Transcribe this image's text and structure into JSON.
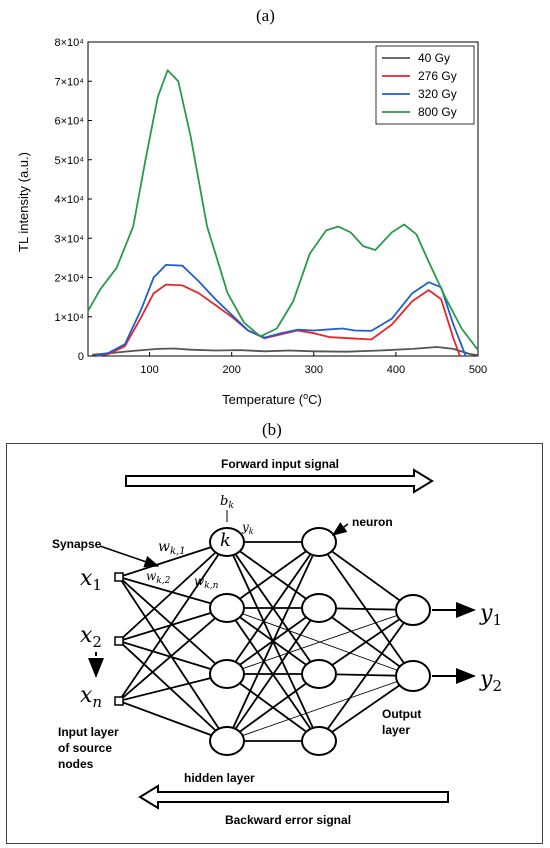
{
  "panel_a_label": "(a)",
  "panel_b_label": "(b)",
  "chart_data": {
    "type": "line",
    "title": "",
    "xlabel": "Temperature (oC)",
    "ylabel": "TL intensity (a.u.)",
    "xlim": [
      25,
      500
    ],
    "ylim": [
      0,
      80000
    ],
    "x_ticks": [
      100,
      200,
      300,
      400,
      500
    ],
    "y_ticks": [
      {
        "value": 0,
        "label": "0"
      },
      {
        "value": 10000,
        "label": "1×10⁴"
      },
      {
        "value": 20000,
        "label": "2×10⁴"
      },
      {
        "value": 30000,
        "label": "3×10⁴"
      },
      {
        "value": 40000,
        "label": "4×10⁴"
      },
      {
        "value": 50000,
        "label": "5×10⁴"
      },
      {
        "value": 60000,
        "label": "6×10⁴"
      },
      {
        "value": 70000,
        "label": "7×10⁴"
      },
      {
        "value": 80000,
        "label": "8×10⁴"
      }
    ],
    "legend_position": "top-right",
    "series": [
      {
        "name": "40 Gy",
        "color": "#555555",
        "points": [
          [
            30,
            300
          ],
          [
            50,
            700
          ],
          [
            80,
            1300
          ],
          [
            110,
            1800
          ],
          [
            130,
            1900
          ],
          [
            150,
            1600
          ],
          [
            180,
            1400
          ],
          [
            210,
            1500
          ],
          [
            240,
            1200
          ],
          [
            270,
            1400
          ],
          [
            300,
            1200
          ],
          [
            340,
            1100
          ],
          [
            380,
            1400
          ],
          [
            420,
            1800
          ],
          [
            450,
            2300
          ],
          [
            470,
            1800
          ],
          [
            490,
            500
          ],
          [
            500,
            200
          ]
        ]
      },
      {
        "name": "276 Gy",
        "color": "#e8262a",
        "points": [
          [
            35,
            0
          ],
          [
            50,
            500
          ],
          [
            70,
            2500
          ],
          [
            90,
            10000
          ],
          [
            105,
            16000
          ],
          [
            120,
            18200
          ],
          [
            140,
            18000
          ],
          [
            160,
            16000
          ],
          [
            180,
            13000
          ],
          [
            200,
            10000
          ],
          [
            220,
            6500
          ],
          [
            240,
            4500
          ],
          [
            260,
            5500
          ],
          [
            280,
            6500
          ],
          [
            300,
            5800
          ],
          [
            320,
            4800
          ],
          [
            345,
            4500
          ],
          [
            370,
            4200
          ],
          [
            395,
            8000
          ],
          [
            420,
            14000
          ],
          [
            440,
            16800
          ],
          [
            455,
            14500
          ],
          [
            470,
            4500
          ],
          [
            478,
            0
          ]
        ]
      },
      {
        "name": "320 Gy",
        "color": "#1f5fce",
        "points": [
          [
            35,
            0
          ],
          [
            50,
            800
          ],
          [
            70,
            3000
          ],
          [
            90,
            12000
          ],
          [
            105,
            20000
          ],
          [
            120,
            23200
          ],
          [
            140,
            23000
          ],
          [
            160,
            19000
          ],
          [
            180,
            14500
          ],
          [
            200,
            10500
          ],
          [
            220,
            6500
          ],
          [
            240,
            4700
          ],
          [
            260,
            5800
          ],
          [
            280,
            6700
          ],
          [
            300,
            6500
          ],
          [
            320,
            6800
          ],
          [
            335,
            7000
          ],
          [
            350,
            6500
          ],
          [
            370,
            6400
          ],
          [
            395,
            9500
          ],
          [
            420,
            16000
          ],
          [
            440,
            18800
          ],
          [
            455,
            17500
          ],
          [
            470,
            8000
          ],
          [
            485,
            0
          ]
        ]
      },
      {
        "name": "800 Gy",
        "color": "#2a9a4a",
        "points": [
          [
            25,
            11500
          ],
          [
            40,
            17000
          ],
          [
            60,
            22500
          ],
          [
            80,
            33000
          ],
          [
            95,
            50000
          ],
          [
            110,
            66000
          ],
          [
            122,
            72800
          ],
          [
            135,
            70000
          ],
          [
            150,
            56000
          ],
          [
            170,
            33000
          ],
          [
            195,
            16000
          ],
          [
            215,
            8500
          ],
          [
            235,
            5000
          ],
          [
            255,
            7000
          ],
          [
            275,
            14000
          ],
          [
            295,
            26000
          ],
          [
            315,
            32000
          ],
          [
            330,
            33000
          ],
          [
            345,
            31500
          ],
          [
            360,
            28000
          ],
          [
            375,
            27000
          ],
          [
            395,
            31500
          ],
          [
            410,
            33500
          ],
          [
            425,
            31000
          ],
          [
            440,
            24000
          ],
          [
            460,
            15000
          ],
          [
            480,
            7000
          ],
          [
            500,
            1500
          ]
        ]
      }
    ]
  },
  "diagram": {
    "forward_label": "Forward input signal",
    "backward_label": "Backward error signal",
    "synapse_label": "Synapse",
    "neuron_label": "neuron",
    "input_layer_label_1": "Input layer",
    "input_layer_label_2": "of source",
    "input_layer_label_3": "nodes",
    "hidden_layer_label": "hidden layer",
    "output_layer_label_1": "Output",
    "output_layer_label_2": "layer",
    "bias_base": "b",
    "bias_sub": "k",
    "k_label": "k",
    "yk_base": "y",
    "yk_sub": "k",
    "w1_base": "w",
    "w1_sub": "k,1",
    "w2_base": "w",
    "w2_sub": "k,2",
    "wn_base": "w",
    "wn_sub": "k,n",
    "inputs": [
      {
        "base": "x",
        "sub": "1"
      },
      {
        "base": "x",
        "sub": "2"
      },
      {
        "base": "x",
        "sub": "n"
      }
    ],
    "outputs": [
      {
        "base": "y",
        "sub": "1"
      },
      {
        "base": "y",
        "sub": "2"
      }
    ]
  }
}
